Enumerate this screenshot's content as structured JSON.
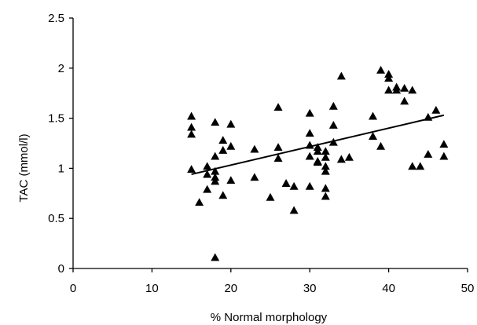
{
  "chart_data": {
    "type": "scatter",
    "title": "",
    "xlabel": "% Normal morphology",
    "ylabel": "TAC (mmol/l)",
    "xlim": [
      0,
      50
    ],
    "ylim": [
      0,
      2.5
    ],
    "x_ticks": [
      0,
      10,
      20,
      30,
      40,
      50
    ],
    "y_ticks": [
      0,
      0.5,
      1,
      1.5,
      2,
      2.5
    ],
    "x_tick_labels": [
      "0",
      "10",
      "20",
      "30",
      "40",
      "50"
    ],
    "y_tick_labels": [
      "0",
      "0.5",
      "1",
      "1.5",
      "2",
      "2.5"
    ],
    "grid": false,
    "legend": "none",
    "marker": "triangle",
    "marker_color": "#000000",
    "series": [
      {
        "points": [
          [
            15,
            1.52
          ],
          [
            15,
            1.41
          ],
          [
            15,
            1.34
          ],
          [
            15,
            0.99
          ],
          [
            16,
            0.66
          ],
          [
            17,
            1.02
          ],
          [
            17,
            0.79
          ],
          [
            17,
            0.94
          ],
          [
            18,
            1.46
          ],
          [
            18,
            1.12
          ],
          [
            18,
            0.97
          ],
          [
            18,
            0.91
          ],
          [
            18,
            0.87
          ],
          [
            18,
            0.11
          ],
          [
            19,
            1.28
          ],
          [
            19,
            1.18
          ],
          [
            19,
            0.73
          ],
          [
            20,
            1.44
          ],
          [
            20,
            1.22
          ],
          [
            20,
            0.88
          ],
          [
            23,
            1.19
          ],
          [
            23,
            0.91
          ],
          [
            25,
            0.71
          ],
          [
            26,
            1.61
          ],
          [
            26,
            1.21
          ],
          [
            26,
            1.1
          ],
          [
            27,
            0.85
          ],
          [
            28,
            0.82
          ],
          [
            28,
            0.58
          ],
          [
            30,
            1.55
          ],
          [
            30,
            1.35
          ],
          [
            30,
            1.23
          ],
          [
            30,
            1.12
          ],
          [
            30,
            0.82
          ],
          [
            31,
            1.21
          ],
          [
            31,
            1.17
          ],
          [
            31,
            1.07
          ],
          [
            31,
            1.06
          ],
          [
            32,
            1.17
          ],
          [
            32,
            1.11
          ],
          [
            32,
            1.02
          ],
          [
            32,
            0.97
          ],
          [
            32,
            0.8
          ],
          [
            32,
            0.72
          ],
          [
            33,
            1.62
          ],
          [
            33,
            1.43
          ],
          [
            33,
            1.26
          ],
          [
            34,
            1.92
          ],
          [
            34,
            1.09
          ],
          [
            35,
            1.11
          ],
          [
            38,
            1.52
          ],
          [
            38,
            1.32
          ],
          [
            39,
            1.98
          ],
          [
            39,
            1.22
          ],
          [
            40,
            1.94
          ],
          [
            40,
            1.9
          ],
          [
            40,
            1.78
          ],
          [
            41,
            1.78
          ],
          [
            41,
            1.81
          ],
          [
            42,
            1.8
          ],
          [
            42,
            1.67
          ],
          [
            43,
            1.78
          ],
          [
            43,
            1.02
          ],
          [
            44,
            1.02
          ],
          [
            45,
            1.51
          ],
          [
            45,
            1.14
          ],
          [
            46,
            1.58
          ],
          [
            47,
            1.24
          ],
          [
            47,
            1.12
          ]
        ]
      }
    ],
    "trendline": {
      "x_start": 15,
      "y_start": 0.94,
      "x_end": 47,
      "y_end": 1.53
    }
  }
}
